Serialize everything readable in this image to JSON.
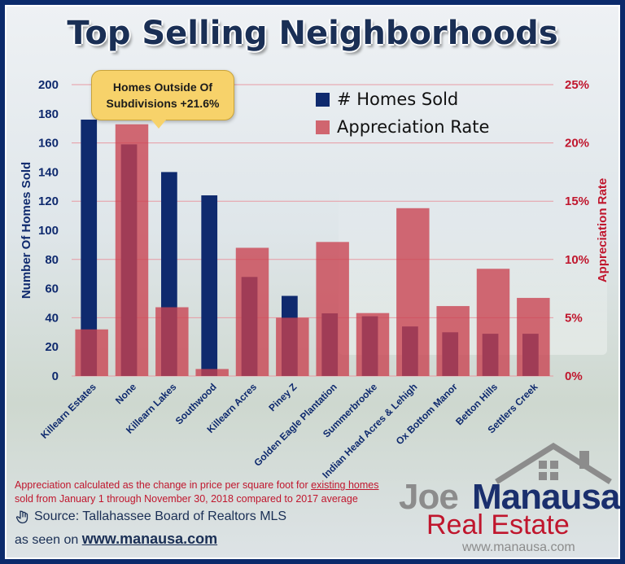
{
  "title": "Top Selling Neighborhoods",
  "annotation": {
    "line1": "Homes Outside Of",
    "line2": "Subdivisions +21.6%"
  },
  "legend": {
    "homes_sold": "# Homes Sold",
    "appreciation": "Appreciation Rate"
  },
  "colors": {
    "homes_sold": "#0f2a6e",
    "appreciation": "#c9414f",
    "left_axis": "#0f2a6e",
    "right_axis": "#c0162d",
    "gridline": "#e79aa3"
  },
  "chart_data": {
    "type": "bar",
    "categories": [
      "Killearn Estates",
      "None",
      "Killearn Lakes",
      "Southwood",
      "Killearn Acres",
      "Piney Z",
      "Golden Eagle Plantation",
      "Summerbrooke",
      "Indian Head Acres & Lehigh",
      "Ox Bottom Manor",
      "Betton Hills",
      "Settlers Creek"
    ],
    "series": [
      {
        "name": "# Homes Sold",
        "axis": "left",
        "values": [
          176,
          159,
          140,
          124,
          68,
          55,
          43,
          41,
          34,
          30,
          29,
          29
        ]
      },
      {
        "name": "Appreciation Rate",
        "axis": "right",
        "values": [
          4.0,
          21.6,
          5.9,
          0.6,
          11.0,
          5.0,
          11.5,
          5.4,
          14.4,
          6.0,
          9.2,
          6.7
        ]
      }
    ],
    "ylabel": "Number Of Homes Sold",
    "ylim": [
      0,
      200
    ],
    "yticks": [
      "0",
      "20",
      "40",
      "60",
      "80",
      "100",
      "120",
      "140",
      "160",
      "180",
      "200"
    ],
    "y2label": "Appreciation Rate",
    "y2lim": [
      0,
      25
    ],
    "y2ticks": [
      "0%",
      "5%",
      "10%",
      "15%",
      "20%",
      "25%"
    ],
    "grid": true
  },
  "footnote": {
    "part1": "Appreciation calculated as the change in price per square foot for ",
    "underlined": "existing homes",
    "part2": "sold from January 1 through November 30, 2018 compared to 2017 average"
  },
  "source": {
    "text": "Source: Tallahassee Board of Realtors MLS",
    "seen_prefix": "as seen on ",
    "seen_url": "www.manausa.com"
  },
  "logo": {
    "joe": "Joe",
    "manausa": "Manausa",
    "real_estate": "Real Estate",
    "url": "www.manausa.com"
  }
}
